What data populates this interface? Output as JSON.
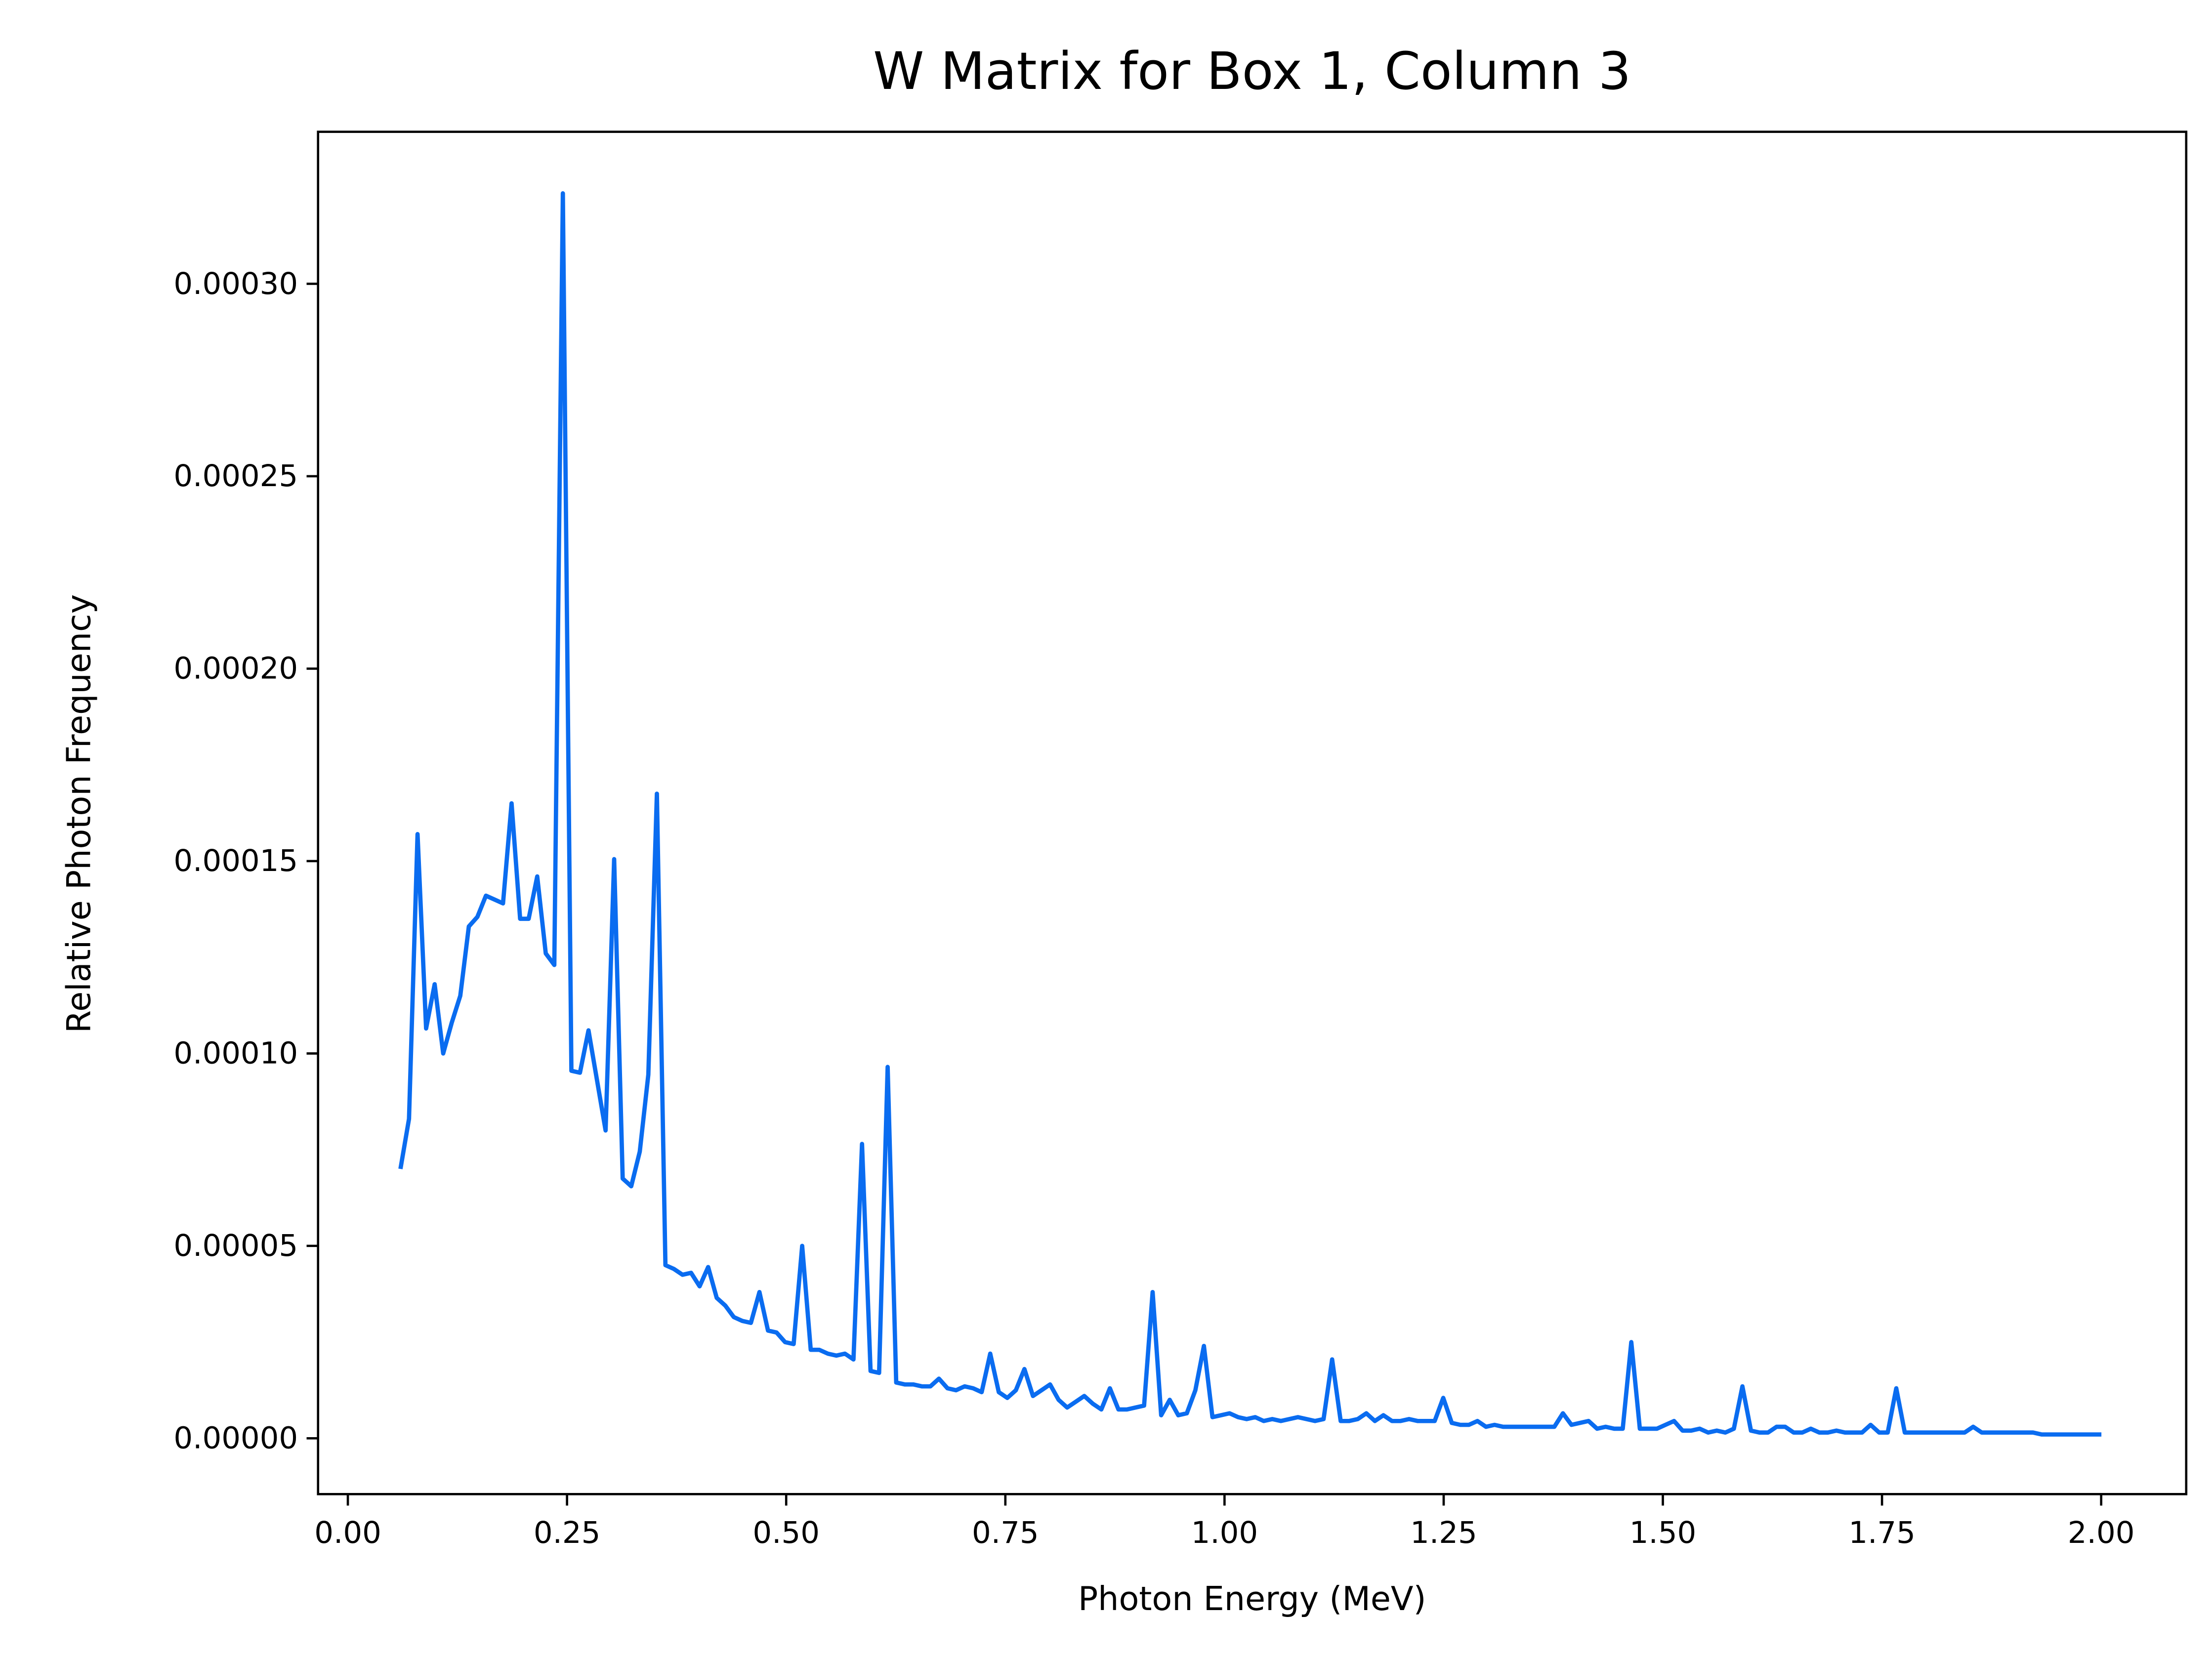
{
  "chart_data": {
    "type": "line",
    "title": "W Matrix for Box 1, Column 3",
    "xlabel": "Photon Energy (MeV)",
    "ylabel": "Relative Photon Frequency",
    "color": "#0a6cf0",
    "grid": false,
    "xlim": [
      -0.034,
      2.097
    ],
    "ylim": [
      -1.45e-05,
      0.0003395
    ],
    "xticks": [
      {
        "value": 0,
        "label": "0.00"
      },
      {
        "value": 0.25,
        "label": "0.25"
      },
      {
        "value": 0.5,
        "label": "0.50"
      },
      {
        "value": 0.75,
        "label": "0.75"
      },
      {
        "value": 1,
        "label": "1.00"
      },
      {
        "value": 1.25,
        "label": "1.25"
      },
      {
        "value": 1.5,
        "label": "1.50"
      },
      {
        "value": 1.75,
        "label": "1.75"
      },
      {
        "value": 2,
        "label": "2.00"
      }
    ],
    "yticks": [
      {
        "value": 0,
        "label": "0.00000"
      },
      {
        "value": 5e-05,
        "label": "0.00005"
      },
      {
        "value": 0.0001,
        "label": "0.00010"
      },
      {
        "value": 0.00015,
        "label": "0.00015"
      },
      {
        "value": 0.0002,
        "label": "0.00020"
      },
      {
        "value": 0.00025,
        "label": "0.00025"
      },
      {
        "value": 0.0003,
        "label": "0.00030"
      }
    ],
    "x": [
      0.06,
      0.06975,
      0.0795,
      0.08925,
      0.099,
      0.10875,
      0.1185,
      0.12825,
      0.138,
      0.14775,
      0.1575,
      0.16725,
      0.177,
      0.18675,
      0.1965,
      0.20625,
      0.216,
      0.22575,
      0.2355,
      0.24525,
      0.255,
      0.26475,
      0.2745,
      0.28425,
      0.294,
      0.30375,
      0.3135,
      0.32325,
      0.333,
      0.34275,
      0.3525,
      0.36225,
      0.372,
      0.38175,
      0.3915,
      0.40125,
      0.411,
      0.42075,
      0.4305,
      0.44025,
      0.45,
      0.45975,
      0.4695,
      0.47925,
      0.489,
      0.49875,
      0.5085,
      0.51825,
      0.528,
      0.53775,
      0.5475,
      0.55725,
      0.567,
      0.57675,
      0.5865,
      0.59625,
      0.606,
      0.61575,
      0.6255,
      0.63525,
      0.645,
      0.65475,
      0.6645,
      0.67425,
      0.684,
      0.69375,
      0.7035,
      0.71325,
      0.723,
      0.73275,
      0.7425,
      0.75225,
      0.762,
      0.77175,
      0.7815,
      0.79125,
      0.801,
      0.81075,
      0.8205,
      0.83025,
      0.84,
      0.84975,
      0.8595,
      0.86925,
      0.879,
      0.88875,
      0.8985,
      0.90825,
      0.918,
      0.92775,
      0.9375,
      0.94725,
      0.957,
      0.96675,
      0.9765,
      0.98625,
      0.996,
      1.00575,
      1.0155,
      1.02525,
      1.035,
      1.04475,
      1.0545,
      1.06425,
      1.074,
      1.08375,
      1.0935,
      1.10325,
      1.113,
      1.12275,
      1.1325,
      1.14225,
      1.152,
      1.16175,
      1.1715,
      1.18125,
      1.191,
      1.20075,
      1.2105,
      1.22025,
      1.23,
      1.23975,
      1.2495,
      1.25925,
      1.269,
      1.27875,
      1.2885,
      1.29825,
      1.308,
      1.31775,
      1.3275,
      1.33725,
      1.347,
      1.35675,
      1.3665,
      1.37625,
      1.386,
      1.39575,
      1.4055,
      1.41525,
      1.425,
      1.43475,
      1.4445,
      1.45425,
      1.464,
      1.47375,
      1.4835,
      1.49325,
      1.503,
      1.51275,
      1.5225,
      1.53225,
      1.542,
      1.55175,
      1.5615,
      1.57125,
      1.581,
      1.59075,
      1.6005,
      1.61025,
      1.62,
      1.62975,
      1.6395,
      1.64925,
      1.659,
      1.66875,
      1.6785,
      1.68825,
      1.698,
      1.70775,
      1.7175,
      1.72725,
      1.737,
      1.74675,
      1.7565,
      1.76625,
      1.776,
      1.78575,
      1.7955,
      1.80525,
      1.815,
      1.82475,
      1.8345,
      1.84425,
      1.854,
      1.86375,
      1.8735,
      1.88325,
      1.893,
      1.90275,
      1.9125,
      1.92225,
      1.932,
      1.94175,
      1.9515,
      1.96125,
      1.971,
      1.98075,
      1.9905,
      2.00025
    ],
    "values": [
      7e-05,
      8.3e-05,
      0.000157,
      0.0001065,
      0.000118,
      0.0001,
      0.000108,
      0.000115,
      0.000133,
      0.0001355,
      0.000141,
      0.00014,
      0.000139,
      0.000165,
      0.000135,
      0.000135,
      0.000146,
      0.000126,
      0.000123,
      0.0003235,
      9.55e-05,
      9.5e-05,
      0.000106,
      9.3e-05,
      8e-05,
      0.0001505,
      6.75e-05,
      6.55e-05,
      7.45e-05,
      9.45e-05,
      0.0001675,
      4.5e-05,
      4.4e-05,
      4.25e-05,
      4.3e-05,
      3.95e-05,
      4.45e-05,
      3.65e-05,
      3.45e-05,
      3.15e-05,
      3.05e-05,
      3e-05,
      3.8e-05,
      2.8e-05,
      2.75e-05,
      2.5e-05,
      2.45e-05,
      5e-05,
      2.3e-05,
      2.3e-05,
      2.2e-05,
      2.15e-05,
      2.2e-05,
      2.05e-05,
      7.65e-05,
      1.75e-05,
      1.7e-05,
      9.65e-05,
      1.45e-05,
      1.4e-05,
      1.4e-05,
      1.35e-05,
      1.35e-05,
      1.55e-05,
      1.3e-05,
      1.25e-05,
      1.35e-05,
      1.3e-05,
      1.2e-05,
      2.2e-05,
      1.2e-05,
      1.05e-05,
      1.25e-05,
      1.8e-05,
      1.1e-05,
      1.25e-05,
      1.4e-05,
      1e-05,
      8e-06,
      9.5e-06,
      1.1e-05,
      9e-06,
      7.5e-06,
      1.3e-05,
      7.5e-06,
      7.5e-06,
      8e-06,
      8.5e-06,
      3.8e-05,
      6e-06,
      1e-05,
      6e-06,
      6.5e-06,
      1.25e-05,
      2.4e-05,
      5.5e-06,
      6e-06,
      6.5e-06,
      5.5e-06,
      5e-06,
      5.5e-06,
      4.5e-06,
      5e-06,
      4.5e-06,
      5e-06,
      5.5e-06,
      5e-06,
      4.5e-06,
      5e-06,
      2.05e-05,
      4.5e-06,
      4.5e-06,
      5e-06,
      6.5e-06,
      4.5e-06,
      6e-06,
      4.5e-06,
      4.5e-06,
      5e-06,
      4.5e-06,
      4.5e-06,
      4.5e-06,
      1.05e-05,
      4e-06,
      3.5e-06,
      3.5e-06,
      4.5e-06,
      3e-06,
      3.5e-06,
      3e-06,
      3e-06,
      3e-06,
      3e-06,
      3e-06,
      3e-06,
      3e-06,
      6.5e-06,
      3.5e-06,
      4e-06,
      4.5e-06,
      2.5e-06,
      3e-06,
      2.5e-06,
      2.5e-06,
      2.5e-05,
      2.5e-06,
      2.5e-06,
      2.5e-06,
      3.5e-06,
      4.5e-06,
      2e-06,
      2e-06,
      2.5e-06,
      1.5e-06,
      2e-06,
      1.5e-06,
      2.5e-06,
      1.35e-05,
      2e-06,
      1.5e-06,
      1.5e-06,
      3e-06,
      3e-06,
      1.5e-06,
      1.5e-06,
      2.5e-06,
      1.5e-06,
      1.5e-06,
      2e-06,
      1.5e-06,
      1.5e-06,
      1.5e-06,
      3.5e-06,
      1.5e-06,
      1.5e-06,
      1.3e-05,
      1.5e-06,
      1.5e-06,
      1.5e-06,
      1.5e-06,
      1.5e-06,
      1.5e-06,
      1.5e-06,
      1.5e-06,
      3e-06,
      1.5e-06,
      1.5e-06,
      1.5e-06,
      1.5e-06,
      1.5e-06,
      1.5e-06,
      1.5e-06,
      1e-06,
      1e-06,
      1e-06,
      1e-06,
      1e-06,
      1e-06,
      1e-06,
      1e-06
    ]
  }
}
